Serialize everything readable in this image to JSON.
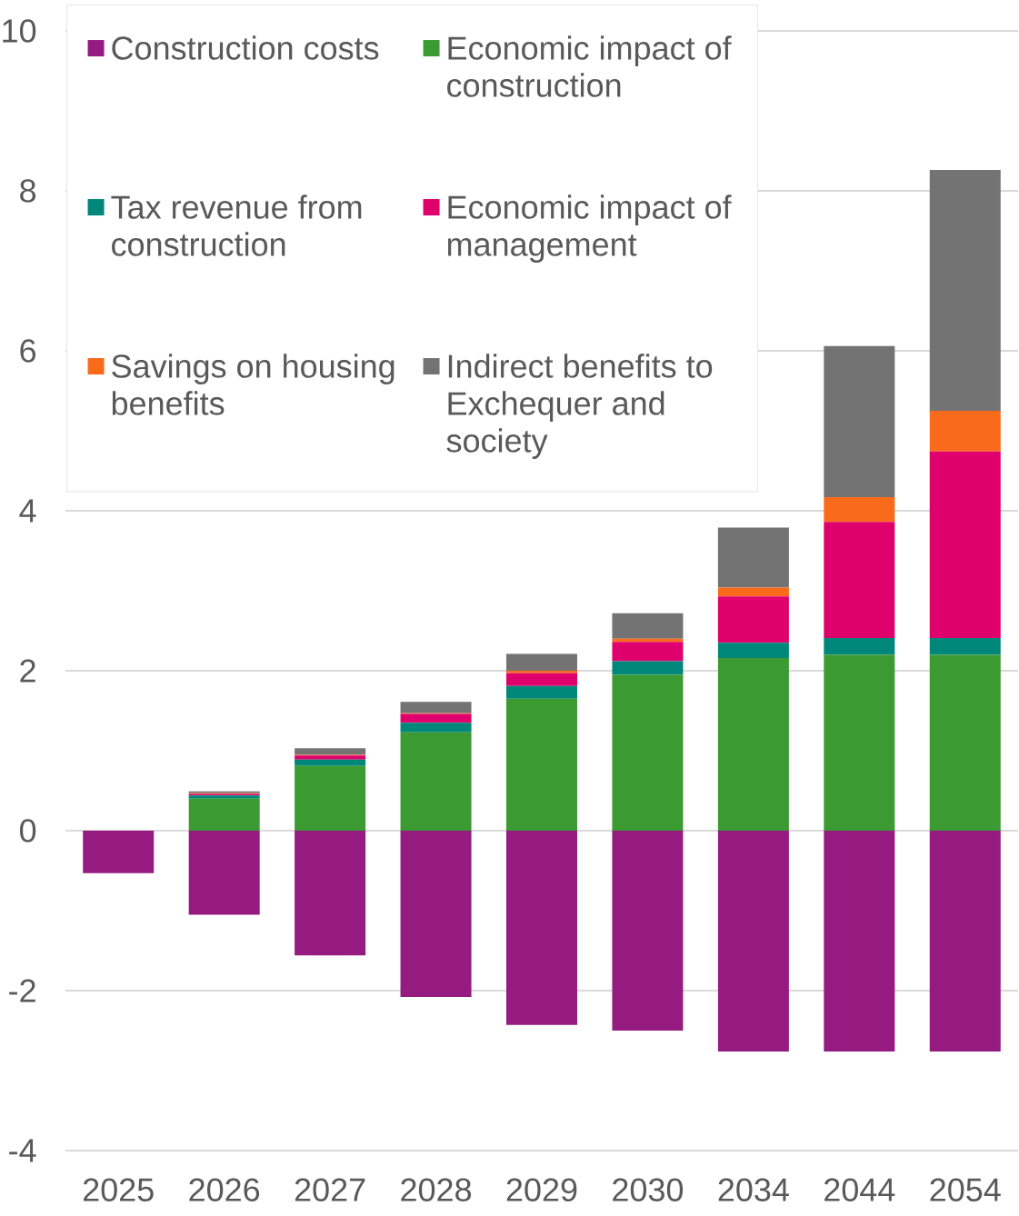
{
  "chart_data": {
    "type": "bar",
    "stacked": true,
    "categories": [
      "2025",
      "2026",
      "2027",
      "2028",
      "2029",
      "2030",
      "2034",
      "2044",
      "2054"
    ],
    "ylim": [
      -4,
      10
    ],
    "yticks": [
      -4,
      -2,
      0,
      2,
      4,
      6,
      8,
      10
    ],
    "grid": "y",
    "legend": "top left",
    "series": [
      {
        "name": "Construction costs",
        "color": "#951b81",
        "values": [
          -0.53,
          -1.05,
          -1.56,
          -2.08,
          -2.43,
          -2.5,
          -2.76,
          -2.76,
          -2.76
        ]
      },
      {
        "name": "Economic impact of construction",
        "color": "#3c9a32",
        "values": [
          null,
          0.4,
          0.81,
          1.23,
          1.65,
          1.95,
          2.16,
          2.2,
          2.2
        ]
      },
      {
        "name": "Tax revenue from construction",
        "color": "#00877a",
        "values": [
          null,
          0.04,
          0.08,
          0.12,
          0.16,
          0.17,
          0.19,
          0.21,
          0.21
        ]
      },
      {
        "name": "Economic impact of management",
        "color": "#e0006d",
        "values": [
          null,
          0.02,
          0.05,
          0.11,
          0.16,
          0.24,
          0.58,
          1.45,
          2.33
        ]
      },
      {
        "name": "Savings on housing benefits",
        "color": "#f96a1b",
        "values": [
          null,
          0.01,
          0.01,
          0.01,
          0.03,
          0.04,
          0.11,
          0.31,
          0.51
        ]
      },
      {
        "name": "Indirect benefits to Exchequer and society",
        "color": "#737373",
        "values": [
          null,
          0.02,
          0.08,
          0.14,
          0.21,
          0.32,
          0.75,
          1.89,
          3.01
        ]
      }
    ]
  }
}
